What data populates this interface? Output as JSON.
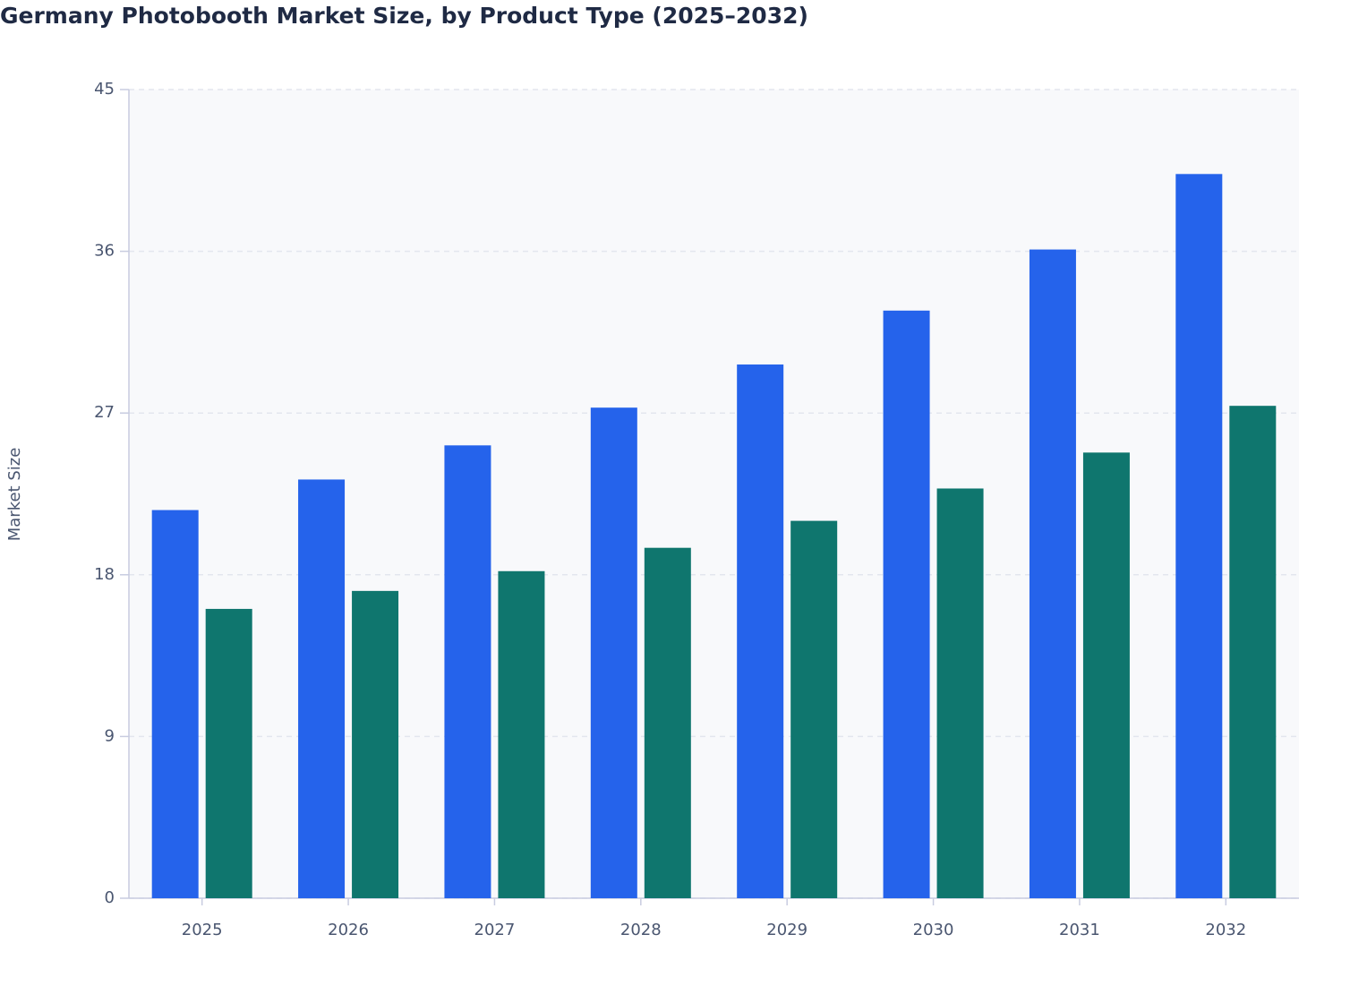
{
  "chart_data": {
    "type": "bar",
    "title": "Germany Photobooth Market Size, by Product Type (2025–2032)",
    "y_label": "Market Size",
    "categories": [
      "2025",
      "2026",
      "2027",
      "2028",
      "2029",
      "2030",
      "2031",
      "2032"
    ],
    "series": [
      {
        "color": "#2563eb",
        "values": [
          21.6,
          23.3,
          25.2,
          27.3,
          29.7,
          32.7,
          36.1,
          40.3
        ]
      },
      {
        "color": "#0f766e",
        "values": [
          16.1,
          17.1,
          18.2,
          19.5,
          21.0,
          22.8,
          24.8,
          27.4
        ]
      }
    ],
    "ylim": [
      0,
      45
    ],
    "yticks": [
      0,
      9,
      18,
      27,
      36,
      45
    ],
    "grid": true
  }
}
